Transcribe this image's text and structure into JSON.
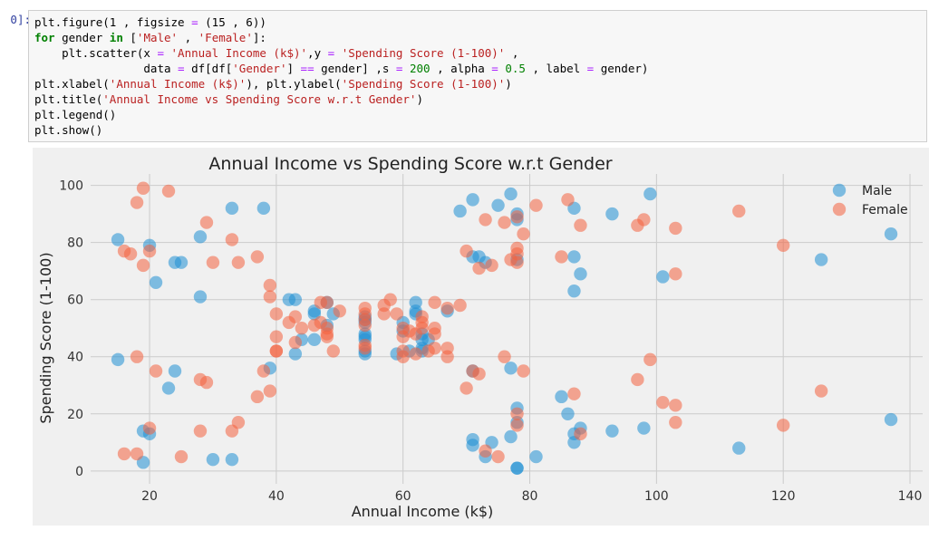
{
  "cell": {
    "prompt": "0]:",
    "code_lines": [
      [
        [
          "t",
          "plt.figure(1 , figsize "
        ],
        [
          "op",
          "="
        ],
        [
          "t",
          " (15 , 6))"
        ]
      ],
      [
        [
          "kw",
          "for"
        ],
        [
          "t",
          " gender "
        ],
        [
          "kw",
          "in"
        ],
        [
          "t",
          " ["
        ],
        [
          "st",
          "'Male'"
        ],
        [
          "t",
          " , "
        ],
        [
          "st",
          "'Female'"
        ],
        [
          "t",
          "]:"
        ]
      ],
      [
        [
          "t",
          "    plt.scatter(x "
        ],
        [
          "op",
          "="
        ],
        [
          "t",
          " "
        ],
        [
          "st",
          "'Annual Income (k$)'"
        ],
        [
          "t",
          ",y "
        ],
        [
          "op",
          "="
        ],
        [
          "t",
          " "
        ],
        [
          "st",
          "'Spending Score (1-100)'"
        ],
        [
          "t",
          " ,"
        ]
      ],
      [
        [
          "t",
          "                data "
        ],
        [
          "op",
          "="
        ],
        [
          "t",
          " df[df["
        ],
        [
          "st",
          "'Gender'"
        ],
        [
          "t",
          "] "
        ],
        [
          "op",
          "=="
        ],
        [
          "t",
          " gender] ,s "
        ],
        [
          "op",
          "="
        ],
        [
          "t",
          " "
        ],
        [
          "nm",
          "200"
        ],
        [
          "t",
          " , alpha "
        ],
        [
          "op",
          "="
        ],
        [
          "t",
          " "
        ],
        [
          "nm",
          "0.5"
        ],
        [
          "t",
          " , label "
        ],
        [
          "op",
          "="
        ],
        [
          "t",
          " gender)"
        ]
      ],
      [
        [
          "t",
          "plt.xlabel("
        ],
        [
          "st",
          "'Annual Income (k$)'"
        ],
        [
          "t",
          "), plt.ylabel("
        ],
        [
          "st",
          "'Spending Score (1-100)'"
        ],
        [
          "t",
          ")"
        ]
      ],
      [
        [
          "t",
          "plt.title("
        ],
        [
          "st",
          "'Annual Income vs Spending Score w.r.t Gender'"
        ],
        [
          "t",
          ")"
        ]
      ],
      [
        [
          "t",
          "plt.legend()"
        ]
      ],
      [
        [
          "t",
          "plt.show()"
        ]
      ]
    ]
  },
  "colors": {
    "male": "#1f8fd4",
    "female": "#f4633f",
    "plot_bg": "#f0f0f0",
    "grid": "#cbcbcb"
  },
  "chart_data": {
    "type": "scatter",
    "title": "Annual Income vs Spending Score w.r.t Gender",
    "xlabel": "Annual Income (k$)",
    "ylabel": "Spending Score (1-100)",
    "xlim": [
      10.7,
      142
    ],
    "ylim": [
      -4.5,
      104
    ],
    "xticks": [
      20,
      40,
      60,
      80,
      100,
      120,
      140
    ],
    "yticks": [
      0,
      20,
      40,
      60,
      80,
      100
    ],
    "grid": true,
    "legend_position": "top-right",
    "series": [
      {
        "name": "Male",
        "points": [
          [
            15,
            39
          ],
          [
            15,
            81
          ],
          [
            19,
            3
          ],
          [
            19,
            14
          ],
          [
            20,
            13
          ],
          [
            20,
            79
          ],
          [
            21,
            66
          ],
          [
            23,
            29
          ],
          [
            24,
            35
          ],
          [
            24,
            73
          ],
          [
            25,
            73
          ],
          [
            28,
            82
          ],
          [
            28,
            61
          ],
          [
            30,
            4
          ],
          [
            33,
            4
          ],
          [
            33,
            92
          ],
          [
            38,
            92
          ],
          [
            39,
            36
          ],
          [
            42,
            60
          ],
          [
            43,
            60
          ],
          [
            43,
            41
          ],
          [
            44,
            46
          ],
          [
            46,
            46
          ],
          [
            46,
            56
          ],
          [
            46,
            55
          ],
          [
            48,
            59
          ],
          [
            48,
            51
          ],
          [
            49,
            55
          ],
          [
            54,
            47
          ],
          [
            54,
            54
          ],
          [
            54,
            53
          ],
          [
            54,
            48
          ],
          [
            54,
            52
          ],
          [
            54,
            42
          ],
          [
            54,
            46
          ],
          [
            54,
            41
          ],
          [
            59,
            41
          ],
          [
            60,
            52
          ],
          [
            60,
            49
          ],
          [
            61,
            42
          ],
          [
            62,
            59
          ],
          [
            62,
            55
          ],
          [
            62,
            56
          ],
          [
            63,
            42
          ],
          [
            63,
            46
          ],
          [
            63,
            43
          ],
          [
            63,
            48
          ],
          [
            64,
            46
          ],
          [
            67,
            56
          ],
          [
            69,
            91
          ],
          [
            71,
            35
          ],
          [
            71,
            75
          ],
          [
            71,
            11
          ],
          [
            71,
            9
          ],
          [
            71,
            95
          ],
          [
            72,
            75
          ],
          [
            73,
            5
          ],
          [
            73,
            73
          ],
          [
            74,
            10
          ],
          [
            75,
            93
          ],
          [
            77,
            36
          ],
          [
            77,
            97
          ],
          [
            77,
            12
          ],
          [
            78,
            74
          ],
          [
            78,
            22
          ],
          [
            78,
            17
          ],
          [
            78,
            90
          ],
          [
            78,
            88
          ],
          [
            78,
            1
          ],
          [
            78,
            1
          ],
          [
            81,
            5
          ],
          [
            85,
            26
          ],
          [
            86,
            20
          ],
          [
            87,
            10
          ],
          [
            87,
            13
          ],
          [
            87,
            75
          ],
          [
            87,
            92
          ],
          [
            87,
            63
          ],
          [
            88,
            69
          ],
          [
            88,
            15
          ],
          [
            93,
            14
          ],
          [
            93,
            90
          ],
          [
            98,
            15
          ],
          [
            99,
            97
          ],
          [
            101,
            68
          ],
          [
            113,
            8
          ],
          [
            126,
            74
          ],
          [
            137,
            18
          ],
          [
            137,
            83
          ]
        ]
      },
      {
        "name": "Female",
        "points": [
          [
            16,
            6
          ],
          [
            16,
            77
          ],
          [
            17,
            76
          ],
          [
            18,
            40
          ],
          [
            18,
            6
          ],
          [
            18,
            94
          ],
          [
            19,
            99
          ],
          [
            19,
            72
          ],
          [
            20,
            15
          ],
          [
            20,
            77
          ],
          [
            21,
            35
          ],
          [
            23,
            98
          ],
          [
            25,
            5
          ],
          [
            28,
            14
          ],
          [
            28,
            32
          ],
          [
            29,
            31
          ],
          [
            29,
            87
          ],
          [
            30,
            73
          ],
          [
            33,
            14
          ],
          [
            33,
            81
          ],
          [
            34,
            17
          ],
          [
            34,
            73
          ],
          [
            37,
            26
          ],
          [
            37,
            75
          ],
          [
            38,
            35
          ],
          [
            39,
            28
          ],
          [
            39,
            65
          ],
          [
            39,
            61
          ],
          [
            40,
            55
          ],
          [
            40,
            47
          ],
          [
            40,
            42
          ],
          [
            40,
            42
          ],
          [
            42,
            52
          ],
          [
            43,
            54
          ],
          [
            43,
            45
          ],
          [
            44,
            50
          ],
          [
            46,
            51
          ],
          [
            47,
            59
          ],
          [
            47,
            52
          ],
          [
            48,
            48
          ],
          [
            48,
            47
          ],
          [
            48,
            59
          ],
          [
            48,
            50
          ],
          [
            49,
            42
          ],
          [
            50,
            56
          ],
          [
            54,
            57
          ],
          [
            54,
            55
          ],
          [
            54,
            51
          ],
          [
            54,
            44
          ],
          [
            54,
            43
          ],
          [
            54,
            53
          ],
          [
            57,
            58
          ],
          [
            57,
            55
          ],
          [
            58,
            60
          ],
          [
            59,
            55
          ],
          [
            60,
            40
          ],
          [
            60,
            42
          ],
          [
            60,
            47
          ],
          [
            60,
            50
          ],
          [
            61,
            49
          ],
          [
            62,
            41
          ],
          [
            62,
            48
          ],
          [
            63,
            52
          ],
          [
            63,
            54
          ],
          [
            63,
            50
          ],
          [
            64,
            42
          ],
          [
            65,
            50
          ],
          [
            65,
            48
          ],
          [
            65,
            59
          ],
          [
            65,
            43
          ],
          [
            67,
            57
          ],
          [
            67,
            43
          ],
          [
            67,
            40
          ],
          [
            69,
            58
          ],
          [
            70,
            29
          ],
          [
            70,
            77
          ],
          [
            71,
            35
          ],
          [
            72,
            34
          ],
          [
            72,
            71
          ],
          [
            73,
            88
          ],
          [
            73,
            7
          ],
          [
            74,
            72
          ],
          [
            75,
            5
          ],
          [
            76,
            40
          ],
          [
            76,
            87
          ],
          [
            77,
            74
          ],
          [
            78,
            16
          ],
          [
            78,
            89
          ],
          [
            78,
            78
          ],
          [
            78,
            73
          ],
          [
            78,
            76
          ],
          [
            78,
            20
          ],
          [
            79,
            35
          ],
          [
            79,
            83
          ],
          [
            81,
            93
          ],
          [
            85,
            75
          ],
          [
            86,
            95
          ],
          [
            87,
            27
          ],
          [
            88,
            13
          ],
          [
            88,
            86
          ],
          [
            97,
            32
          ],
          [
            97,
            86
          ],
          [
            98,
            88
          ],
          [
            99,
            39
          ],
          [
            101,
            24
          ],
          [
            103,
            17
          ],
          [
            103,
            85
          ],
          [
            103,
            23
          ],
          [
            103,
            69
          ],
          [
            113,
            91
          ],
          [
            120,
            16
          ],
          [
            120,
            79
          ],
          [
            126,
            28
          ]
        ]
      }
    ]
  }
}
